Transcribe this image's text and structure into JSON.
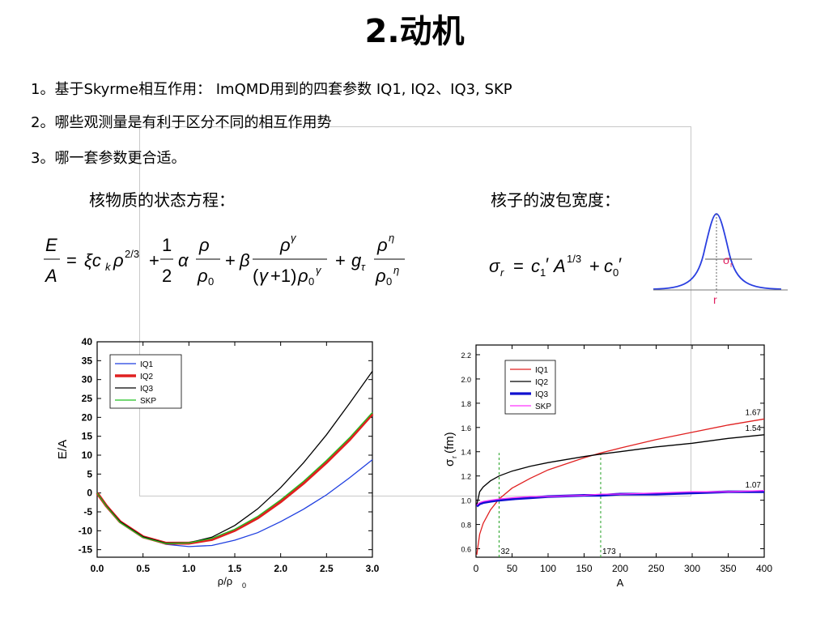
{
  "slide": {
    "title": "2.动机",
    "points": [
      "1。基于Skyrme相互作用： ImQMD用到的四套参数 IQ1, IQ2、IQ3, SKP",
      "2。哪些观测量是有利于区分不同的相互作用势",
      "3。哪一套参数更合适。"
    ],
    "eos_heading": "核物质的状态方程：",
    "wp_heading": "核子的波包宽度："
  },
  "inset": {
    "sigma_label": "σ",
    "sigma_sub": "r",
    "axis_label": "r"
  },
  "chart_data": [
    {
      "type": "line",
      "xlabel": "ρ/ρ",
      "xlabel_sub": "0",
      "ylabel": "E/A",
      "xlim": [
        0,
        3
      ],
      "ylim": [
        -17,
        40
      ],
      "xticks": [
        "0.0",
        "0.5",
        "1.0",
        "1.5",
        "2.0",
        "2.5",
        "3.0"
      ],
      "yticks": [
        "40",
        "35",
        "30",
        "25",
        "20",
        "15",
        "10",
        "5",
        "0",
        "-5",
        "-10",
        "-15"
      ],
      "legend": {
        "position": "top-left",
        "entries": [
          "IQ1",
          "IQ2",
          "IQ3",
          "SKP"
        ]
      },
      "series": [
        {
          "name": "IQ1",
          "color": "#1f3fe0",
          "x": [
            0,
            0.1,
            0.25,
            0.5,
            0.75,
            1.0,
            1.25,
            1.5,
            1.75,
            2.0,
            2.25,
            2.5,
            2.75,
            3.0
          ],
          "y": [
            0,
            -3.2,
            -7.4,
            -11.6,
            -13.6,
            -14.2,
            -13.9,
            -12.5,
            -10.5,
            -7.6,
            -4.3,
            -0.5,
            4.0,
            8.8
          ]
        },
        {
          "name": "IQ2",
          "color": "#e02020",
          "x": [
            0,
            0.1,
            0.25,
            0.5,
            0.75,
            1.0,
            1.25,
            1.5,
            1.75,
            2.0,
            2.25,
            2.5,
            2.75,
            3.0
          ],
          "y": [
            0,
            -3.4,
            -7.6,
            -11.6,
            -13.3,
            -13.3,
            -12.3,
            -9.9,
            -6.6,
            -2.3,
            2.6,
            8.1,
            14.1,
            20.9
          ]
        },
        {
          "name": "IQ3",
          "color": "#000000",
          "x": [
            0,
            0.1,
            0.25,
            0.5,
            0.75,
            1.0,
            1.25,
            1.5,
            1.75,
            2.0,
            2.25,
            2.5,
            2.75,
            3.0
          ],
          "y": [
            0,
            -3.4,
            -7.6,
            -11.6,
            -13.3,
            -13.2,
            -11.7,
            -8.6,
            -4.2,
            1.4,
            8.0,
            15.4,
            23.7,
            32.2
          ]
        },
        {
          "name": "SKP",
          "color": "#22c022",
          "x": [
            0,
            0.1,
            0.25,
            0.5,
            0.75,
            1.0,
            1.25,
            1.5,
            1.75,
            2.0,
            2.25,
            2.5,
            2.75,
            3.0
          ],
          "y": [
            0,
            -3.5,
            -7.8,
            -11.8,
            -13.4,
            -13.2,
            -12.0,
            -9.6,
            -6.2,
            -1.8,
            3.1,
            8.6,
            14.6,
            21.3
          ]
        }
      ]
    },
    {
      "type": "line",
      "xlabel": "A",
      "ylabel": "σ",
      "ylabel_sub": "r",
      "ylabel_unit": "(fm)",
      "xlim": [
        0,
        400
      ],
      "ylim": [
        0.53,
        2.28
      ],
      "xticks": [
        "0",
        "50",
        "100",
        "150",
        "200",
        "250",
        "300",
        "350",
        "400"
      ],
      "yticks": [
        "0.6",
        "0.8",
        "1.0",
        "1.2",
        "1.4",
        "1.6",
        "1.8",
        "2.0",
        "2.2"
      ],
      "legend": {
        "position": "top-left",
        "entries": [
          "IQ1",
          "IQ2",
          "IQ3",
          "SKP"
        ]
      },
      "annotations": [
        {
          "text": "1.67",
          "x": 400,
          "y": 1.67
        },
        {
          "text": "1.54",
          "x": 400,
          "y": 1.54
        },
        {
          "text": "1.07",
          "x": 400,
          "y": 1.07
        },
        {
          "text": "32",
          "x": 32,
          "y": 0.6
        },
        {
          "text": "173",
          "x": 173,
          "y": 0.6
        }
      ],
      "vlines": [
        32,
        173
      ],
      "series": [
        {
          "name": "IQ1",
          "color": "#e02020",
          "x": [
            1,
            5,
            10,
            20,
            32,
            50,
            75,
            100,
            150,
            173,
            200,
            250,
            300,
            350,
            400
          ],
          "y": [
            0.55,
            0.72,
            0.81,
            0.92,
            1.01,
            1.1,
            1.18,
            1.25,
            1.35,
            1.39,
            1.43,
            1.5,
            1.56,
            1.62,
            1.67
          ]
        },
        {
          "name": "IQ2",
          "color": "#000000",
          "x": [
            1,
            5,
            10,
            20,
            32,
            50,
            75,
            100,
            150,
            173,
            200,
            250,
            300,
            350,
            400
          ],
          "y": [
            0.96,
            1.07,
            1.11,
            1.16,
            1.2,
            1.24,
            1.28,
            1.31,
            1.36,
            1.38,
            1.4,
            1.44,
            1.47,
            1.51,
            1.54
          ]
        },
        {
          "name": "IQ3",
          "color": "#1010d0",
          "x": [
            1,
            5,
            10,
            20,
            32,
            50,
            75,
            100,
            150,
            173,
            200,
            250,
            300,
            350,
            400
          ],
          "y": [
            0.95,
            0.97,
            0.98,
            0.99,
            1.0,
            1.01,
            1.02,
            1.03,
            1.04,
            1.04,
            1.05,
            1.05,
            1.06,
            1.07,
            1.07
          ]
        },
        {
          "name": "SKP",
          "color": "#ff33ff",
          "x": [
            1,
            5,
            10,
            20,
            32,
            50,
            75,
            100,
            150,
            173,
            200,
            250,
            300,
            350,
            400
          ],
          "y": [
            0.96,
            0.98,
            0.99,
            1.0,
            1.01,
            1.02,
            1.03,
            1.03,
            1.04,
            1.05,
            1.05,
            1.06,
            1.07,
            1.07,
            1.08
          ]
        }
      ]
    }
  ]
}
